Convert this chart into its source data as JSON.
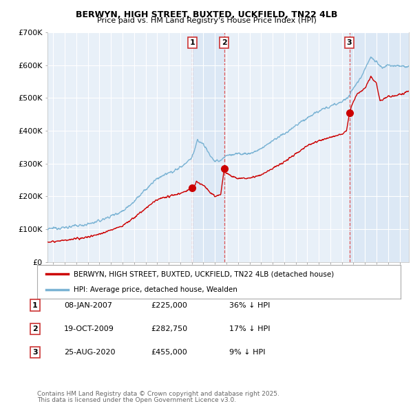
{
  "title1": "BERWYN, HIGH STREET, BUXTED, UCKFIELD, TN22 4LB",
  "title2": "Price paid vs. HM Land Registry's House Price Index (HPI)",
  "background_color": "#ffffff",
  "plot_bg_color": "#e8f0f8",
  "grid_color": "#ffffff",
  "hpi_color": "#7ab3d4",
  "price_color": "#cc0000",
  "shade_color": "#dce8f5",
  "annotation_line_color": "#dd4444",
  "legend_label_price": "BERWYN, HIGH STREET, BUXTED, UCKFIELD, TN22 4LB (detached house)",
  "legend_label_hpi": "HPI: Average price, detached house, Wealden",
  "sales": [
    {
      "num": 1,
      "date": "08-JAN-2007",
      "price": 225000,
      "pct": "36%",
      "x_year": 2007.03
    },
    {
      "num": 2,
      "date": "19-OCT-2009",
      "price": 282750,
      "pct": "17%",
      "x_year": 2009.8
    },
    {
      "num": 3,
      "date": "25-AUG-2020",
      "price": 455000,
      "pct": "9%",
      "x_year": 2020.65
    }
  ],
  "footer1": "Contains HM Land Registry data © Crown copyright and database right 2025.",
  "footer2": "This data is licensed under the Open Government Licence v3.0.",
  "ylim": [
    0,
    700000
  ],
  "yticks": [
    0,
    100000,
    200000,
    300000,
    400000,
    500000,
    600000,
    700000
  ],
  "ytick_labels": [
    "£0",
    "£100K",
    "£200K",
    "£300K",
    "£400K",
    "£500K",
    "£600K",
    "£700K"
  ],
  "xlim_start": 1994.5,
  "xlim_end": 2025.8
}
